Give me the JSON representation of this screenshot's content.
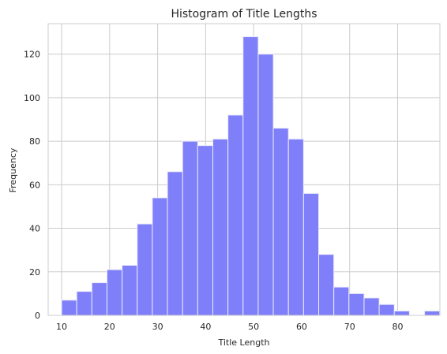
{
  "chart_data": {
    "type": "bar",
    "title": "Histogram of Title Lengths",
    "xlabel": "Title Length",
    "ylabel": "Frequency",
    "xlim": [
      7.2,
      88.8
    ],
    "ylim": [
      0,
      134
    ],
    "x_ticks": [
      10,
      20,
      30,
      40,
      50,
      60,
      70,
      80
    ],
    "y_ticks": [
      0,
      20,
      40,
      60,
      80,
      100,
      120
    ],
    "grid": true,
    "bin_start": 10,
    "bin_width": 3.15,
    "values": [
      7,
      11,
      15,
      21,
      23,
      42,
      54,
      66,
      80,
      78,
      81,
      92,
      128,
      120,
      86,
      81,
      56,
      28,
      13,
      10,
      8,
      5,
      2,
      0,
      2
    ],
    "color": "#7f7ffa"
  }
}
